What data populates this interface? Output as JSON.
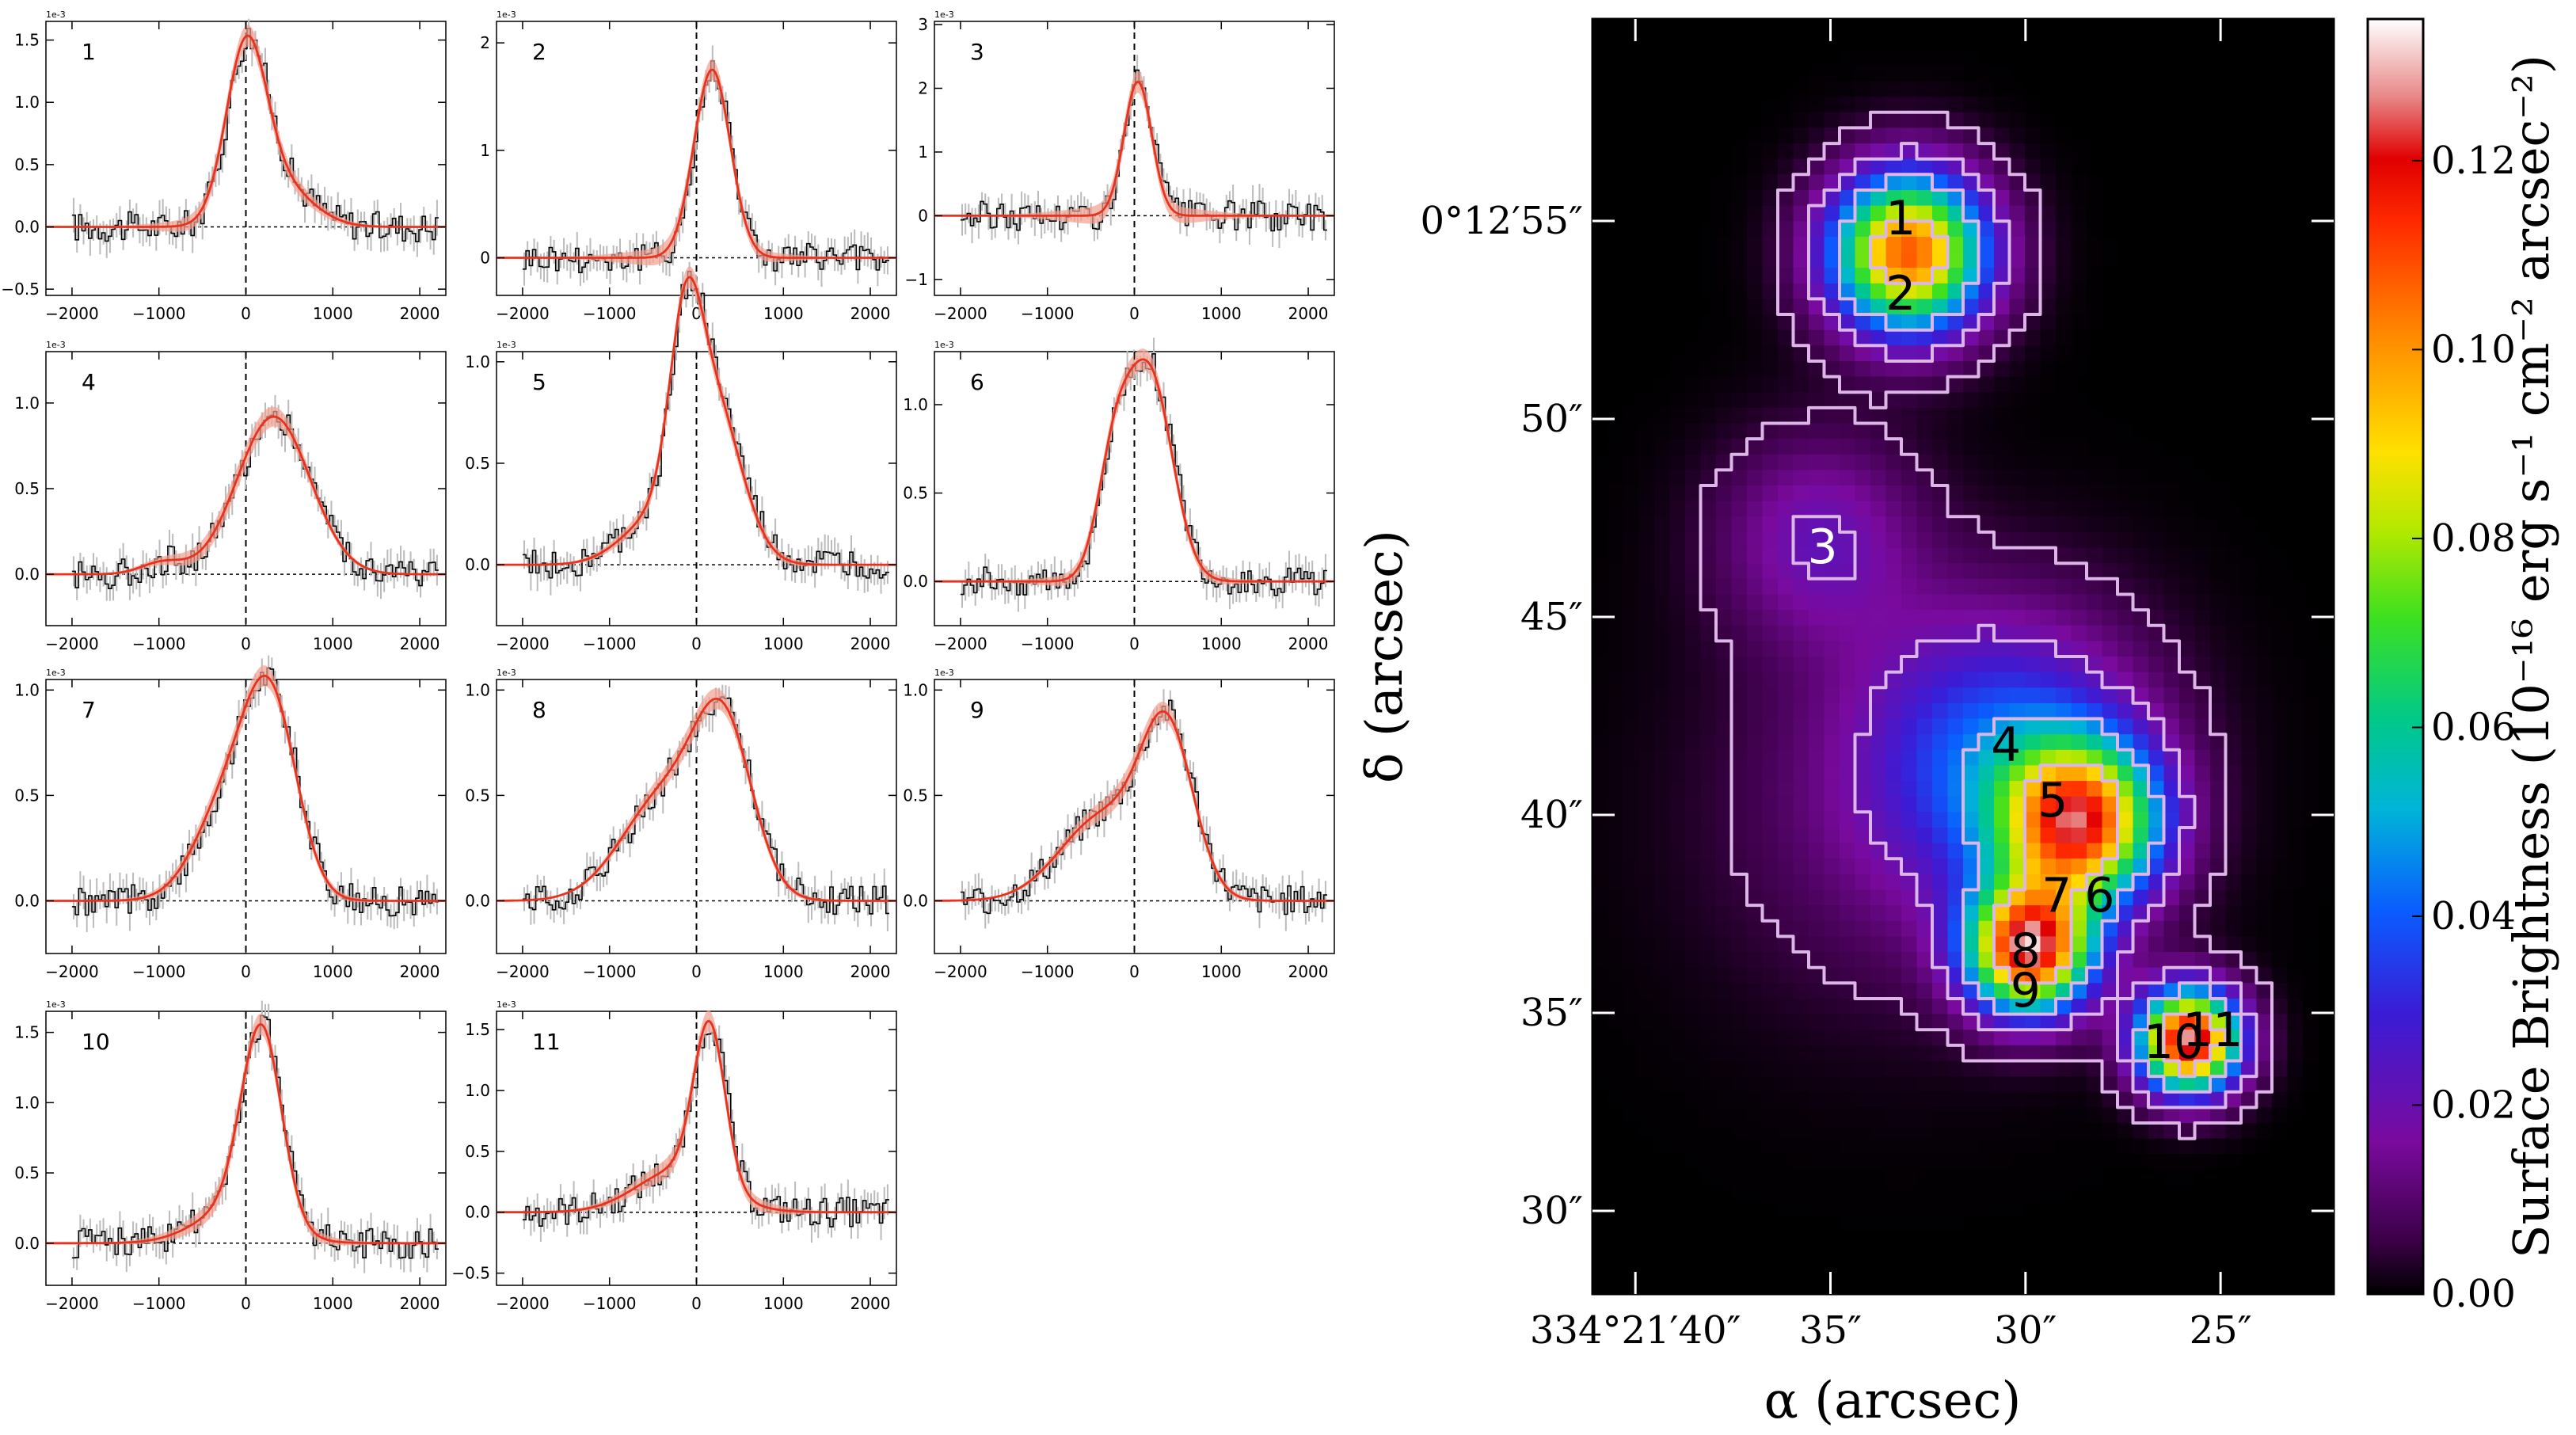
{
  "spectra": {
    "x_range": [
      -2300,
      2300
    ],
    "x_ticks": [
      -2000,
      -1000,
      0,
      1000,
      2000
    ],
    "exponent_label": "1e-3",
    "colors": {
      "data": "#000000",
      "error": "#bbbbbb",
      "fit": "#e8321e",
      "fit_band": "#f4a090"
    },
    "panels": [
      {
        "label": "1",
        "ylim": [
          -0.55,
          1.65
        ],
        "yticks": [
          -0.5,
          0.0,
          0.5,
          1.0,
          1.5
        ],
        "y_fmt": 1
      },
      {
        "label": "2",
        "ylim": [
          -0.35,
          2.2
        ],
        "yticks": [
          0,
          1,
          2
        ],
        "y_fmt": 0
      },
      {
        "label": "3",
        "ylim": [
          -1.25,
          3.05
        ],
        "yticks": [
          -1,
          0,
          1,
          2,
          3
        ],
        "y_fmt": 0
      },
      {
        "label": "4",
        "ylim": [
          -0.3,
          1.3
        ],
        "yticks": [
          0.0,
          0.5,
          1.0
        ],
        "y_fmt": 1
      },
      {
        "label": "5",
        "ylim": [
          -0.3,
          1.05
        ],
        "yticks": [
          0.0,
          0.5,
          1.0
        ],
        "y_fmt": 1
      },
      {
        "label": "6",
        "ylim": [
          -0.25,
          1.3
        ],
        "yticks": [
          0.0,
          0.5,
          1.0
        ],
        "y_fmt": 1
      },
      {
        "label": "7",
        "ylim": [
          -0.25,
          1.05
        ],
        "yticks": [
          0.0,
          0.5,
          1.0
        ],
        "y_fmt": 1
      },
      {
        "label": "8",
        "ylim": [
          -0.25,
          1.05
        ],
        "yticks": [
          0.0,
          0.5,
          1.0
        ],
        "y_fmt": 1
      },
      {
        "label": "9",
        "ylim": [
          -0.25,
          1.05
        ],
        "yticks": [
          0.0,
          0.5,
          1.0
        ],
        "y_fmt": 1
      },
      {
        "label": "10",
        "ylim": [
          -0.3,
          1.65
        ],
        "yticks": [
          0.0,
          0.5,
          1.0,
          1.5
        ],
        "y_fmt": 1
      },
      {
        "label": "11",
        "ylim": [
          -0.6,
          1.65
        ],
        "yticks": [
          -0.5,
          0.0,
          0.5,
          1.0,
          1.5
        ],
        "y_fmt": 1
      }
    ]
  },
  "map": {
    "x_axis_label": "α (arcsec)",
    "y_axis_label": "δ (arcsec)",
    "ra_tick_labels": [
      "334°21′40″",
      "35″",
      "30″",
      "25″"
    ],
    "dec_tick_labels": [
      "0°12′55″",
      "50″",
      "45″",
      "40″",
      "35″",
      "30″"
    ],
    "colorbar": {
      "label": "Surface Brightness (10⁻¹⁶ erg s⁻¹ cm⁻² arcsec⁻²)",
      "ticks": [
        "0.00",
        "0.02",
        "0.04",
        "0.06",
        "0.08",
        "0.10",
        "0.12"
      ],
      "range": [
        0.0,
        0.135
      ]
    },
    "contour_color": "#dcb6e6",
    "region_labels": [
      {
        "label": "1",
        "color": "#000000"
      },
      {
        "label": "2",
        "color": "#000000"
      },
      {
        "label": "3",
        "color": "#ffffff"
      },
      {
        "label": "4",
        "color": "#000000"
      },
      {
        "label": "5",
        "color": "#000000"
      },
      {
        "label": "6",
        "color": "#000000"
      },
      {
        "label": "7",
        "color": "#000000"
      },
      {
        "label": "8",
        "color": "#000000"
      },
      {
        "label": "9",
        "color": "#000000"
      },
      {
        "label": "10",
        "color": "#000000"
      },
      {
        "label": "11",
        "color": "#000000"
      }
    ]
  },
  "chart_data": [
    {
      "type": "line",
      "title": "",
      "xlabel": "",
      "ylabel": "",
      "xlim": [
        -2300,
        2300
      ],
      "series_note_free": true,
      "panels": [
        {
          "label": "1",
          "peaks": [
            {
              "center": 0,
              "amp": 1.3,
              "sigma": 230
            },
            {
              "center": 350,
              "amp": 0.35,
              "sigma": 380
            }
          ]
        },
        {
          "label": "2",
          "peaks": [
            {
              "center": 180,
              "amp": 1.75,
              "sigma": 210
            }
          ]
        },
        {
          "label": "3",
          "peaks": [
            {
              "center": 40,
              "amp": 2.1,
              "sigma": 160
            }
          ]
        },
        {
          "label": "4",
          "peaks": [
            {
              "center": 320,
              "amp": 0.92,
              "sigma": 420
            },
            {
              "center": -950,
              "amp": 0.07,
              "sigma": 250
            }
          ]
        },
        {
          "label": "5",
          "peaks": [
            {
              "center": -130,
              "amp": 0.72,
              "sigma": 180
            },
            {
              "center": 170,
              "amp": 0.82,
              "sigma": 330
            },
            {
              "center": -500,
              "amp": 0.2,
              "sigma": 380
            }
          ]
        },
        {
          "label": "6",
          "peaks": [
            {
              "center": -230,
              "amp": 0.62,
              "sigma": 200
            },
            {
              "center": 180,
              "amp": 1.15,
              "sigma": 260
            }
          ]
        },
        {
          "label": "7",
          "peaks": [
            {
              "center": -180,
              "amp": 0.48,
              "sigma": 380
            },
            {
              "center": 300,
              "amp": 0.82,
              "sigma": 300
            }
          ]
        },
        {
          "label": "8",
          "peaks": [
            {
              "center": -350,
              "amp": 0.5,
              "sigma": 500
            },
            {
              "center": 320,
              "amp": 0.73,
              "sigma": 330
            }
          ]
        },
        {
          "label": "9",
          "peaks": [
            {
              "center": -350,
              "amp": 0.4,
              "sigma": 500
            },
            {
              "center": 380,
              "amp": 0.75,
              "sigma": 300
            }
          ]
        },
        {
          "label": "10",
          "peaks": [
            {
              "center": 180,
              "amp": 1.35,
              "sigma": 230
            },
            {
              "center": -100,
              "amp": 0.25,
              "sigma": 450
            }
          ]
        },
        {
          "label": "11",
          "peaks": [
            {
              "center": 150,
              "amp": 1.3,
              "sigma": 180
            },
            {
              "center": -200,
              "amp": 0.35,
              "sigma": 480
            }
          ]
        }
      ]
    },
    {
      "type": "heatmap",
      "title": "",
      "xlabel": "α (arcsec)",
      "ylabel": "δ (arcsec)",
      "ra_range_arcsec": [
        41.1,
        22.1
      ],
      "dec_range_arcsec": [
        27.9,
        60.1
      ],
      "colorbar_range": [
        0.0,
        0.135
      ],
      "contour_levels": [
        0.005,
        0.02,
        0.045,
        0.09
      ],
      "components": [
        {
          "ra": 33.0,
          "dec": 54.2,
          "sb": 0.108,
          "width": 1.4
        },
        {
          "ra": 35.3,
          "dec": 47.0,
          "sb": 0.02,
          "width": 1.8
        },
        {
          "ra": 30.5,
          "dec": 41.5,
          "sb": 0.035,
          "width": 2.5
        },
        {
          "ra": 28.6,
          "dec": 39.8,
          "sb": 0.1,
          "width": 1.4
        },
        {
          "ra": 29.9,
          "dec": 36.6,
          "sb": 0.118,
          "width": 1.1
        },
        {
          "ra": 25.8,
          "dec": 34.3,
          "sb": 0.128,
          "width": 0.9
        },
        {
          "ra": 33.2,
          "dec": 40.0,
          "sb": 0.01,
          "width": 3.5
        }
      ]
    }
  ]
}
